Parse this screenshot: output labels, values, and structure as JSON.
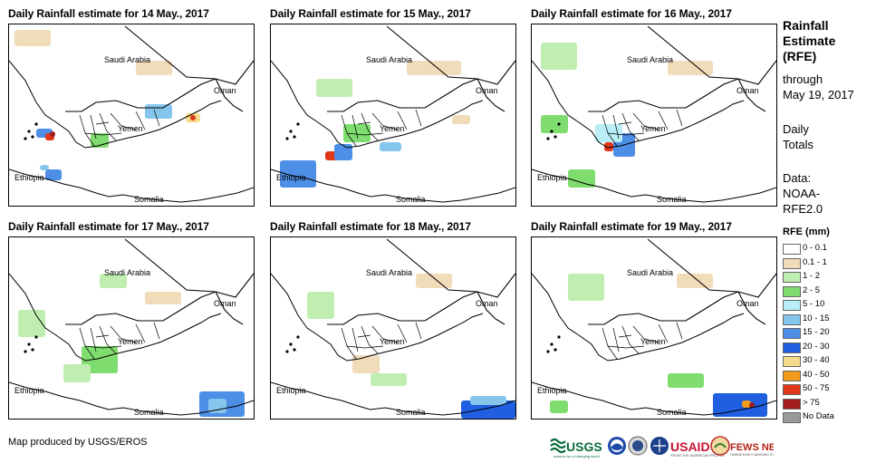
{
  "panels": [
    {
      "title": "Daily Rainfall estimate for 14 May., 2017"
    },
    {
      "title": "Daily Rainfall estimate for 15 May., 2017"
    },
    {
      "title": "Daily Rainfall estimate for 16 May., 2017"
    },
    {
      "title": "Daily Rainfall estimate for 17 May., 2017"
    },
    {
      "title": "Daily Rainfall estimate for 18 May., 2017"
    },
    {
      "title": "Daily Rainfall estimate for 19 May., 2017"
    }
  ],
  "labels": {
    "saudi": "Saudi Arabia",
    "oman": "Oman",
    "yemen": "Yemen",
    "ethiopia": "Ethiopia",
    "somalia": "Somalia"
  },
  "sidebar": {
    "title_lines": [
      "Rainfall",
      "Estimate",
      "(RFE)"
    ],
    "through": "through",
    "date": "May 19, 2017",
    "daily": "Daily",
    "totals": "Totals",
    "data_label": "Data:",
    "data_source_1": "NOAA-",
    "data_source_2": "RFE2.0",
    "rfe_units": "RFE (mm)"
  },
  "legend": [
    {
      "label": "0 - 0.1",
      "color": "#ffffff"
    },
    {
      "label": "0.1 - 1",
      "color": "#f1dcba"
    },
    {
      "label": "1 - 2",
      "color": "#bfeeb0"
    },
    {
      "label": "2 - 5",
      "color": "#7fdc6e"
    },
    {
      "label": "5 - 10",
      "color": "#b9eef6"
    },
    {
      "label": "10 - 15",
      "color": "#86c6ec"
    },
    {
      "label": "15 - 20",
      "color": "#4d8ee6"
    },
    {
      "label": "20 - 30",
      "color": "#1f5fe0"
    },
    {
      "label": "30 - 40",
      "color": "#f5dc8a"
    },
    {
      "label": "40 - 50",
      "color": "#f29b1c"
    },
    {
      "label": "50 - 75",
      "color": "#e0361a"
    },
    {
      "label": "> 75",
      "color": "#a31c1c"
    },
    {
      "label": "No Data",
      "color": "#999999"
    }
  ],
  "credit": "Map produced by USGS/EROS",
  "logos": {
    "usgs": "USGS",
    "usaid": "USAID",
    "fews": "FEWS NET"
  }
}
